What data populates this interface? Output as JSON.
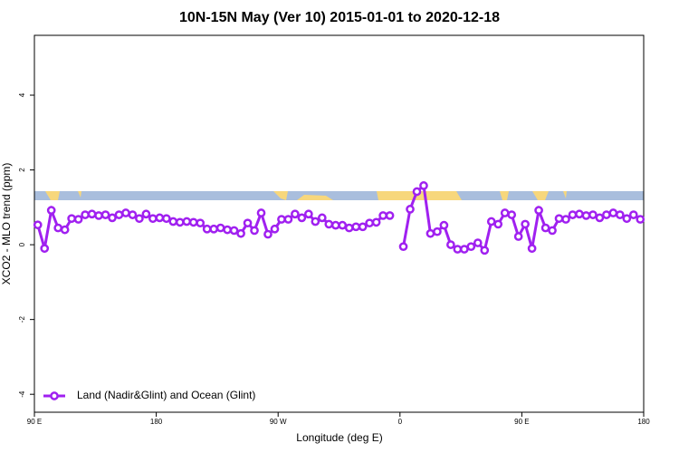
{
  "chart_data": {
    "type": "line",
    "title": "10N-15N May (Ver 10)   2015-01-01 to 2020-12-18",
    "xlabel": "Longitude (deg E)",
    "ylabel": "XCO2 - MLO trend (ppm)",
    "xlim": [
      90,
      540
    ],
    "ylim": [
      -4.48,
      5.6
    ],
    "xticks": [
      {
        "value": 90,
        "label": "90 E"
      },
      180,
      {
        "value": 270,
        "label": "90 W"
      },
      {
        "value": 360,
        "label": "0"
      },
      {
        "value": 450,
        "label": "90 E"
      },
      {
        "value": 540,
        "label": "180"
      }
    ],
    "yticks": [
      -4,
      -2,
      0,
      2,
      4
    ],
    "legend": "bottomleft",
    "x": [
      92.5,
      97.5,
      102.5,
      107.5,
      112.5,
      117.5,
      122.5,
      127.5,
      132.5,
      137.5,
      142.5,
      147.5,
      152.5,
      157.5,
      162.5,
      167.5,
      172.5,
      177.5,
      182.5,
      187.5,
      192.5,
      197.5,
      202.5,
      207.5,
      212.5,
      217.5,
      222.5,
      227.5,
      232.5,
      237.5,
      242.5,
      247.5,
      252.5,
      257.5,
      262.5,
      267.5,
      272.5,
      277.5,
      282.5,
      287.5,
      292.5,
      297.5,
      302.5,
      307.5,
      312.5,
      317.5,
      322.5,
      327.5,
      332.5,
      337.5,
      342.5,
      347.5,
      352.5,
      357.5,
      362.5,
      367.5,
      372.5,
      377.5,
      382.5,
      387.5,
      392.5,
      397.5,
      402.5,
      407.5,
      412.5,
      417.5,
      422.5,
      427.5,
      432.5,
      437.5,
      442.5,
      447.5,
      452.5,
      457.5,
      462.5,
      467.5,
      472.5,
      477.5,
      482.5,
      487.5,
      492.5,
      497.5,
      502.5,
      507.5,
      512.5,
      517.5,
      522.5,
      527.5,
      532.5,
      537.5
    ],
    "series": [
      {
        "name": "Land (Nadir&Glint) and Ocean (Glint)",
        "color": "#a020f0",
        "values": [
          0.53,
          -0.1,
          0.92,
          0.45,
          0.4,
          0.7,
          0.68,
          0.8,
          0.82,
          0.78,
          0.8,
          0.72,
          0.8,
          0.85,
          0.8,
          0.7,
          0.82,
          0.7,
          0.72,
          0.7,
          0.62,
          0.6,
          0.62,
          0.6,
          0.58,
          0.42,
          0.42,
          0.45,
          0.4,
          0.38,
          0.3,
          0.58,
          0.38,
          0.85,
          0.28,
          0.42,
          0.68,
          0.68,
          0.82,
          0.72,
          0.82,
          0.62,
          0.72,
          0.55,
          0.52,
          0.52,
          0.45,
          0.48,
          0.48,
          0.58,
          0.6,
          0.78,
          0.78,
          null,
          -0.05,
          0.95,
          1.42,
          1.58,
          0.3,
          0.35,
          0.52,
          0.0,
          -0.12,
          -0.12,
          -0.05,
          0.05,
          -0.15,
          0.62,
          0.55,
          0.85,
          0.8,
          0.22,
          0.55,
          -0.1,
          0.92,
          0.45,
          0.38,
          0.7,
          0.68,
          0.8,
          0.82,
          0.78,
          0.8,
          0.72,
          0.8,
          0.85,
          0.8,
          0.7,
          0.8,
          0.68
        ]
      }
    ]
  }
}
